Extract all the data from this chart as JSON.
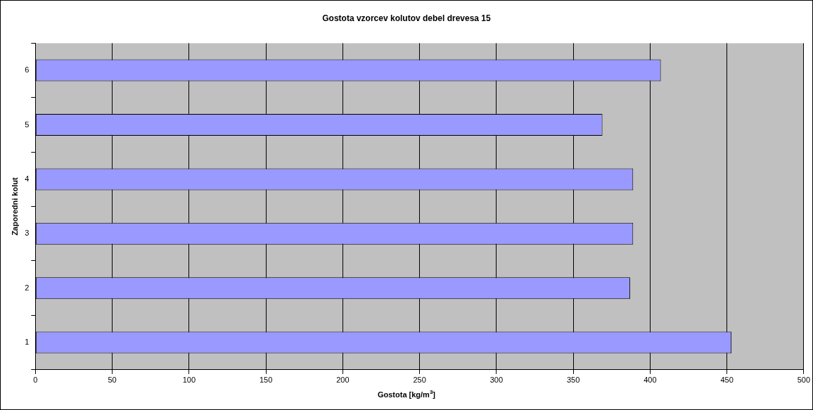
{
  "chart_data": {
    "type": "bar",
    "orientation": "horizontal",
    "title": "Gostota vzorcev kolutov debel drevesa 15",
    "xlabel": "Gostota [kg/m$^{3}$]",
    "ylabel": "Zaporedni kolut",
    "categories": [
      "6",
      "5",
      "4",
      "3",
      "2",
      "1"
    ],
    "values": [
      407,
      369,
      389,
      389,
      387,
      453
    ],
    "color": "#9999ff",
    "xlim": [
      0,
      500
    ],
    "xticks": [
      0,
      50,
      100,
      150,
      200,
      250,
      300,
      350,
      400,
      450,
      500
    ],
    "grid": "x",
    "legend": false
  }
}
